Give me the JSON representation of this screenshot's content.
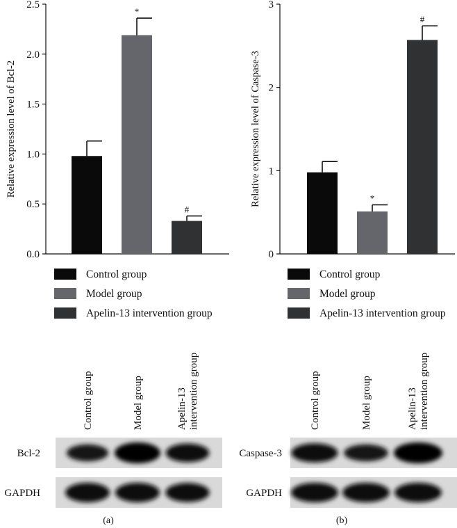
{
  "chart_data": [
    {
      "type": "bar",
      "panel": "(a)",
      "ylabel": "Relative expression level of Bcl-2",
      "ylim": [
        0,
        2.5
      ],
      "yticks": [
        "0.0",
        "0.5",
        "1.0",
        "1.5",
        "2.0",
        "2.5"
      ],
      "categories": [
        "Control group",
        "Model group",
        "Apelin-13 intervention group"
      ],
      "values": [
        0.98,
        2.19,
        0.33
      ],
      "errors": [
        0.15,
        0.17,
        0.05
      ],
      "annotations": [
        "",
        "*",
        "#"
      ],
      "legend": [
        "Control group",
        "Model group",
        "Apelin-13 intervention group"
      ],
      "grid": false
    },
    {
      "type": "bar",
      "panel": "(b)",
      "ylabel": "Relative expression level of Caspase-3",
      "ylim": [
        0,
        3
      ],
      "yticks": [
        "0",
        "1",
        "2",
        "3"
      ],
      "categories": [
        "Control group",
        "Model group",
        "Apelin-13 intervention group"
      ],
      "values": [
        0.98,
        0.51,
        2.57
      ],
      "errors": [
        0.13,
        0.08,
        0.17
      ],
      "annotations": [
        "",
        "*",
        "#"
      ],
      "legend": [
        "Control group",
        "Model group",
        "Apelin-13 intervention group"
      ],
      "grid": false
    }
  ],
  "colors": {
    "control": "#0a0a0a",
    "model": "#65666b",
    "apelin": "#303133"
  },
  "blots": {
    "a": {
      "lane_labels": [
        "Control group",
        "Model group",
        "Apelin-13|intervention group"
      ],
      "rows": [
        {
          "label": "Bcl-2",
          "intensity": [
            0.55,
            1.0,
            0.75
          ]
        },
        {
          "label": "GAPDH",
          "intensity": [
            0.85,
            0.85,
            0.8
          ]
        }
      ],
      "panel_label": "(a)"
    },
    "b": {
      "lane_labels": [
        "Control group",
        "Model group",
        "Apelin-13|intervention group"
      ],
      "rows": [
        {
          "label": "Caspase-3",
          "intensity": [
            0.8,
            0.55,
            1.0
          ]
        },
        {
          "label": "GAPDH",
          "intensity": [
            0.85,
            0.85,
            0.85
          ]
        }
      ],
      "panel_label": "(b)"
    }
  }
}
